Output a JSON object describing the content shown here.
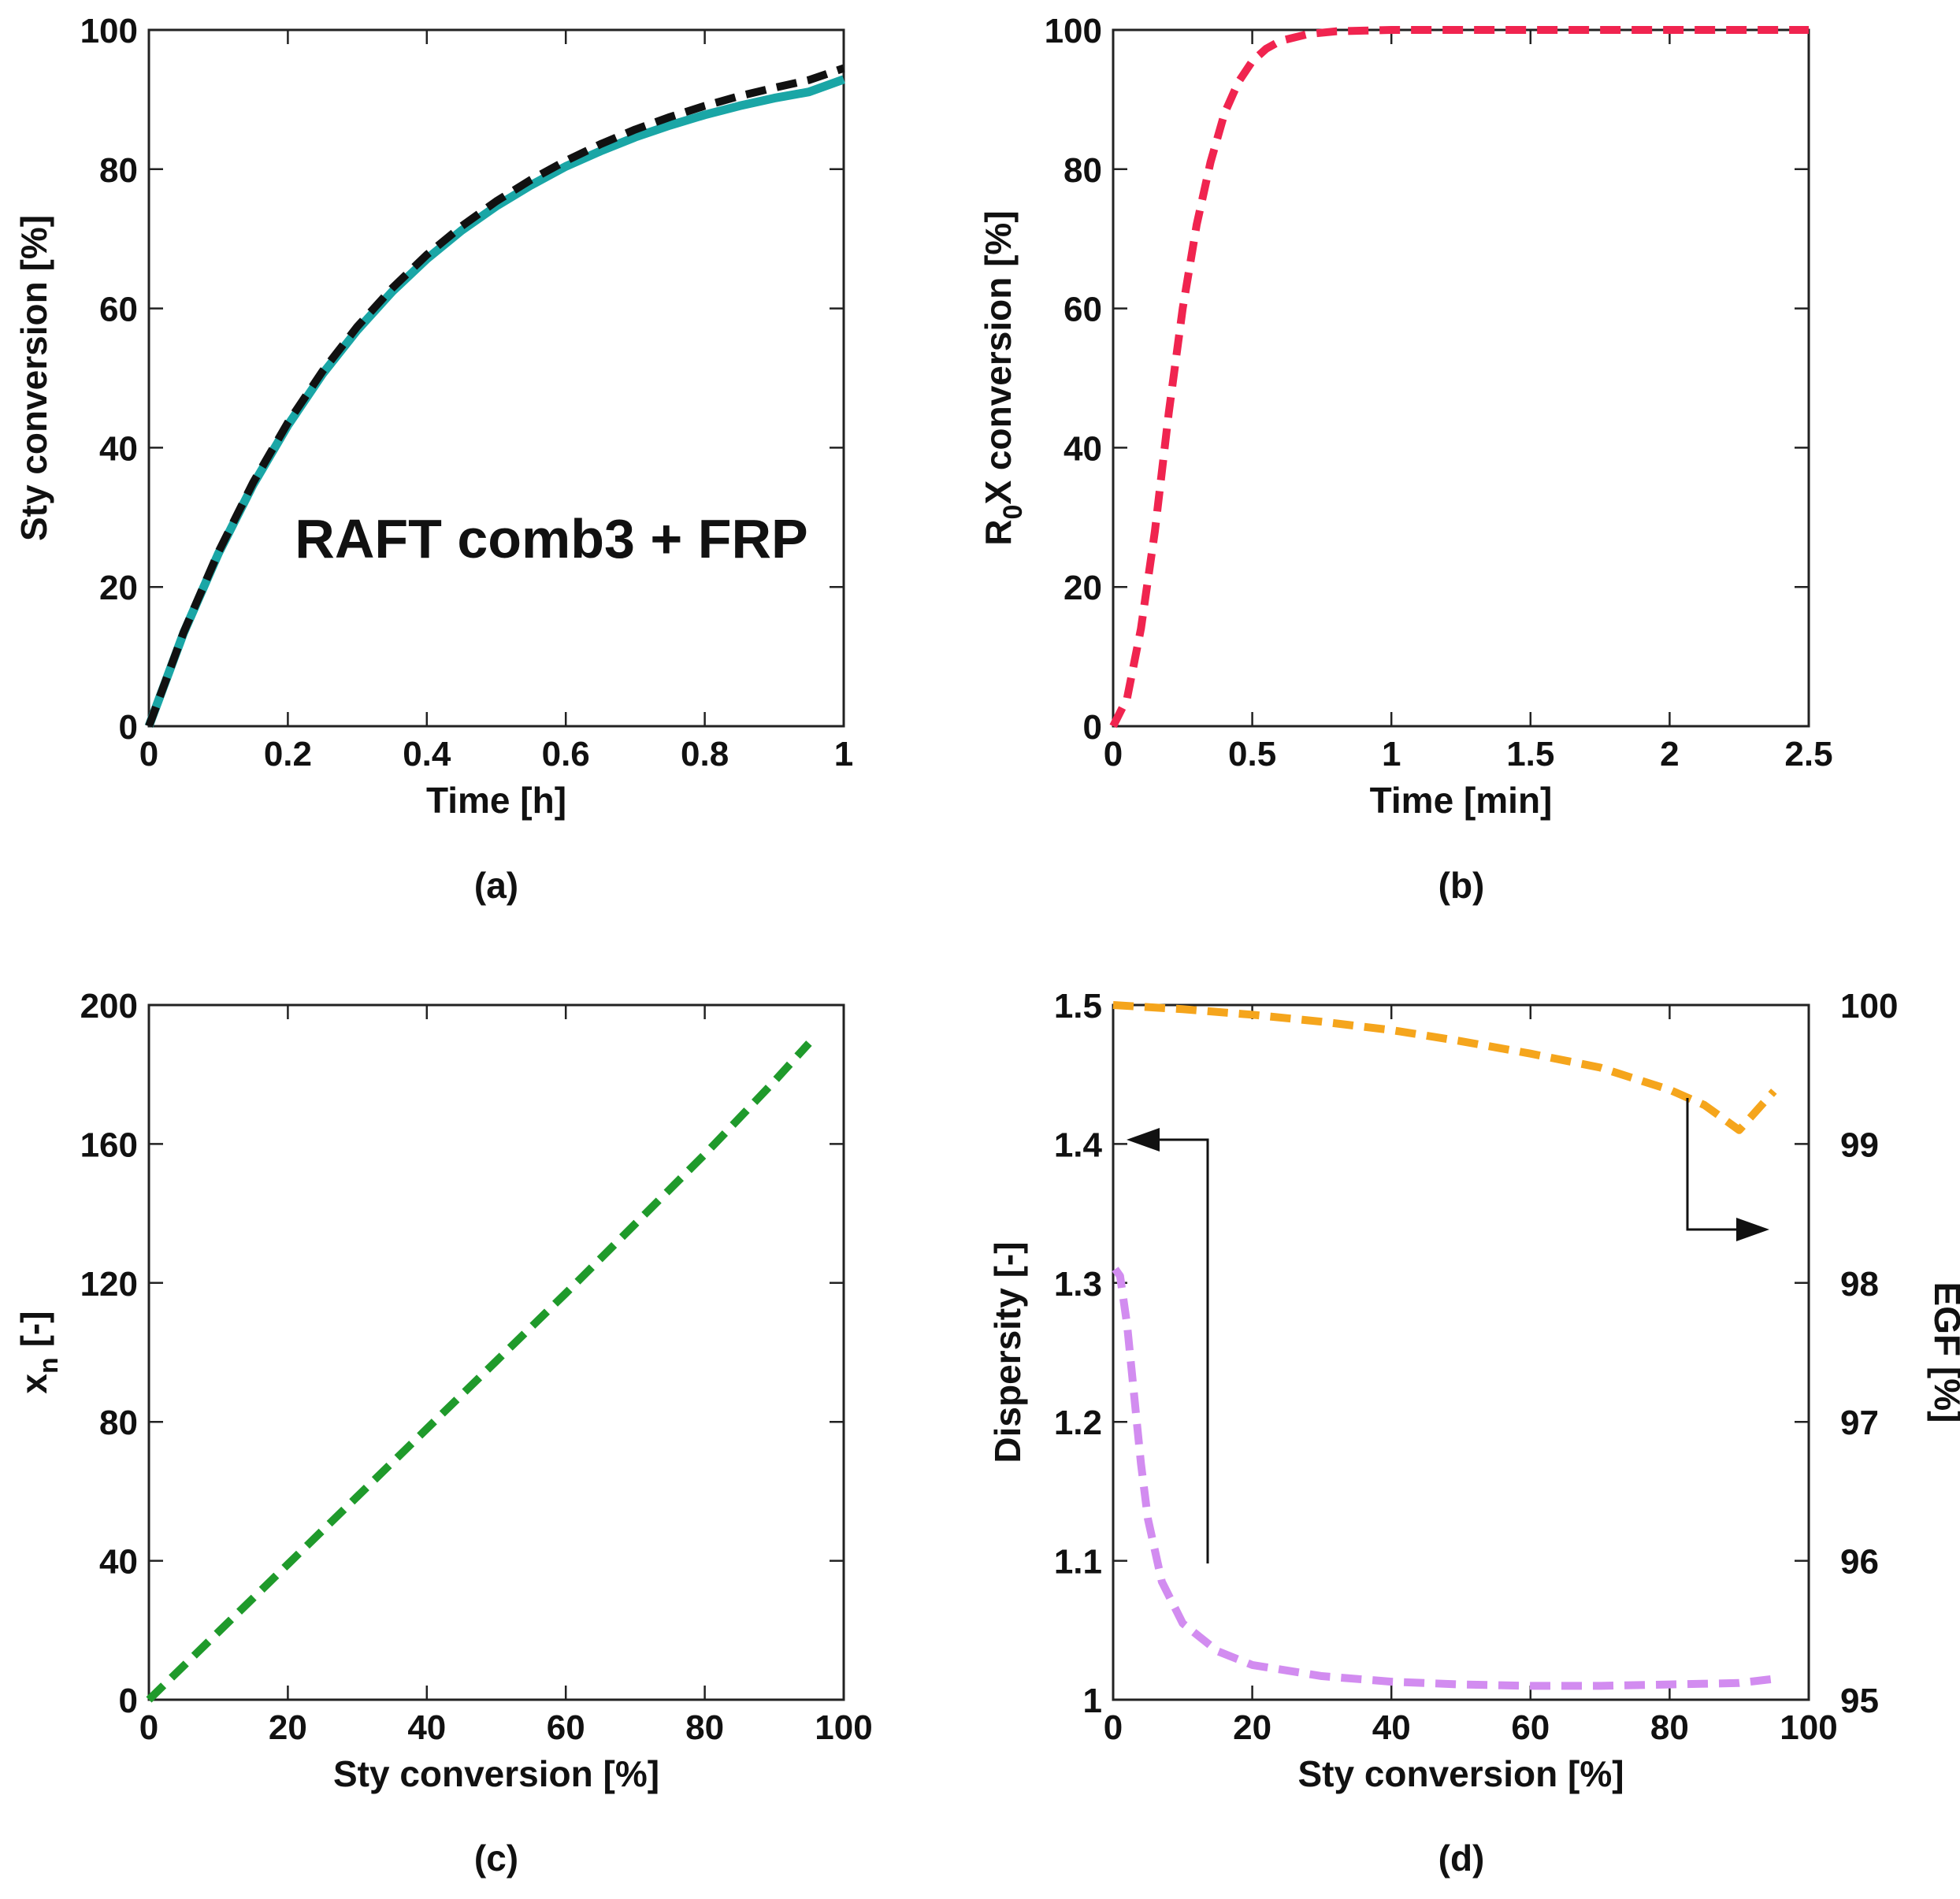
{
  "chart_data": [
    {
      "id": "a",
      "type": "line",
      "caption": "(a)",
      "annotation": "RAFT comb3 + FRP",
      "xlabel": "Time [h]",
      "ylabel": "Sty conversion [%]",
      "xlim": [
        0,
        1
      ],
      "ylim": [
        0,
        100
      ],
      "xticks": [
        0,
        0.2,
        0.4,
        0.6,
        0.8,
        1
      ],
      "xtick_labels": [
        "0",
        "0.2",
        "0.4",
        "0.6",
        "0.8",
        "1"
      ],
      "yticks": [
        0,
        20,
        40,
        60,
        80,
        100
      ],
      "ytick_labels": [
        "0",
        "20",
        "40",
        "60",
        "80",
        "100"
      ],
      "series": [
        {
          "name": "solid",
          "color": "#1aa6a6",
          "style": "solid",
          "x": [
            0,
            0.05,
            0.1,
            0.15,
            0.2,
            0.25,
            0.3,
            0.35,
            0.4,
            0.45,
            0.5,
            0.55,
            0.6,
            0.65,
            0.7,
            0.75,
            0.8,
            0.85,
            0.9,
            0.95,
            1.0
          ],
          "y": [
            0,
            13.4,
            24.8,
            34.7,
            43.2,
            50.6,
            56.9,
            62.4,
            67.1,
            71.2,
            74.7,
            77.7,
            80.4,
            82.6,
            84.6,
            86.3,
            87.8,
            89.1,
            90.2,
            91.1,
            92.9
          ]
        },
        {
          "name": "dashed",
          "color": "#111111",
          "style": "dashed",
          "x": [
            0,
            0.05,
            0.1,
            0.15,
            0.2,
            0.25,
            0.3,
            0.35,
            0.4,
            0.45,
            0.5,
            0.55,
            0.6,
            0.65,
            0.7,
            0.75,
            0.8,
            0.85,
            0.9,
            0.95,
            1.0
          ],
          "y": [
            0,
            13.5,
            25.0,
            35.0,
            43.6,
            51.0,
            57.4,
            62.9,
            67.7,
            71.8,
            75.4,
            78.5,
            81.2,
            83.6,
            85.7,
            87.5,
            89.1,
            90.5,
            91.7,
            92.8,
            94.5
          ]
        }
      ]
    },
    {
      "id": "b",
      "type": "line",
      "caption": "(b)",
      "xlabel": "Time [min]",
      "ylabel_main": "R",
      "ylabel_sub": "0",
      "ylabel_rest": "X conversion [%]",
      "xlim": [
        0,
        2.5
      ],
      "ylim": [
        0,
        100
      ],
      "xticks": [
        0,
        0.5,
        1,
        1.5,
        2,
        2.5
      ],
      "xtick_labels": [
        "0",
        "0.5",
        "1",
        "1.5",
        "2",
        "2.5"
      ],
      "yticks": [
        0,
        20,
        40,
        60,
        80,
        100
      ],
      "ytick_labels": [
        "0",
        "20",
        "40",
        "60",
        "80",
        "100"
      ],
      "series": [
        {
          "name": "R0X",
          "color": "#f0244f",
          "style": "dashed",
          "x": [
            0,
            0.05,
            0.1,
            0.15,
            0.2,
            0.25,
            0.3,
            0.35,
            0.4,
            0.45,
            0.5,
            0.55,
            0.6,
            0.7,
            0.8,
            0.9,
            1.0,
            1.5,
            2.0,
            2.5
          ],
          "y": [
            0,
            4,
            14,
            28,
            45,
            60,
            72,
            81,
            88,
            92.5,
            95.5,
            97.3,
            98.4,
            99.4,
            99.8,
            99.9,
            100,
            100,
            100,
            100
          ]
        }
      ]
    },
    {
      "id": "c",
      "type": "line",
      "caption": "(c)",
      "xlabel": "Sty conversion [%]",
      "ylabel_main": "x",
      "ylabel_sub": "n",
      "ylabel_rest": " [-]",
      "xlim": [
        0,
        100
      ],
      "ylim": [
        0,
        200
      ],
      "xticks": [
        0,
        20,
        40,
        60,
        80,
        100
      ],
      "xtick_labels": [
        "0",
        "20",
        "40",
        "60",
        "80",
        "100"
      ],
      "yticks": [
        0,
        40,
        80,
        120,
        160,
        200
      ],
      "ytick_labels": [
        "0",
        "40",
        "80",
        "120",
        "160",
        "200"
      ],
      "series": [
        {
          "name": "xn",
          "color": "#1f9a2b",
          "style": "dashed",
          "x": [
            0,
            10,
            20,
            30,
            40,
            50,
            60,
            70,
            80,
            90,
            95
          ],
          "y": [
            0,
            19.5,
            39,
            58.5,
            78,
            97.5,
            117,
            137,
            157,
            178,
            189
          ]
        }
      ]
    },
    {
      "id": "d",
      "type": "line",
      "caption": "(d)",
      "xlabel": "Sty conversion [%]",
      "ylabel": "Dispersity [-]",
      "ylabel_right": "EGF [%]",
      "xlim": [
        0,
        100
      ],
      "ylim": [
        1,
        1.5
      ],
      "ylim_right": [
        95,
        100
      ],
      "xticks": [
        0,
        20,
        40,
        60,
        80,
        100
      ],
      "xtick_labels": [
        "0",
        "20",
        "40",
        "60",
        "80",
        "100"
      ],
      "yticks": [
        1,
        1.1,
        1.2,
        1.3,
        1.4,
        1.5
      ],
      "ytick_labels": [
        "1",
        "1.1",
        "1.2",
        "1.3",
        "1.4",
        "1.5"
      ],
      "yticks_right": [
        95,
        96,
        97,
        98,
        99,
        100
      ],
      "ytick_labels_right": [
        "95",
        "96",
        "97",
        "98",
        "99",
        "100"
      ],
      "series": [
        {
          "name": "Dispersity",
          "axis": "left",
          "color": "#d28cf0",
          "style": "dashed",
          "x": [
            0.3,
            1,
            2,
            3,
            4,
            5,
            7,
            10,
            15,
            20,
            30,
            40,
            50,
            60,
            70,
            80,
            90,
            95
          ],
          "y": [
            1.31,
            1.305,
            1.27,
            1.22,
            1.17,
            1.13,
            1.085,
            1.055,
            1.035,
            1.025,
            1.017,
            1.013,
            1.011,
            1.01,
            1.01,
            1.011,
            1.012,
            1.015
          ]
        },
        {
          "name": "EGF",
          "axis": "right",
          "color": "#f5a51c",
          "style": "dashed",
          "x": [
            0,
            10,
            20,
            30,
            40,
            50,
            60,
            70,
            80,
            85,
            90,
            95
          ],
          "y": [
            100,
            99.97,
            99.93,
            99.88,
            99.82,
            99.74,
            99.65,
            99.55,
            99.39,
            99.28,
            99.1,
            99.38
          ]
        }
      ]
    }
  ]
}
